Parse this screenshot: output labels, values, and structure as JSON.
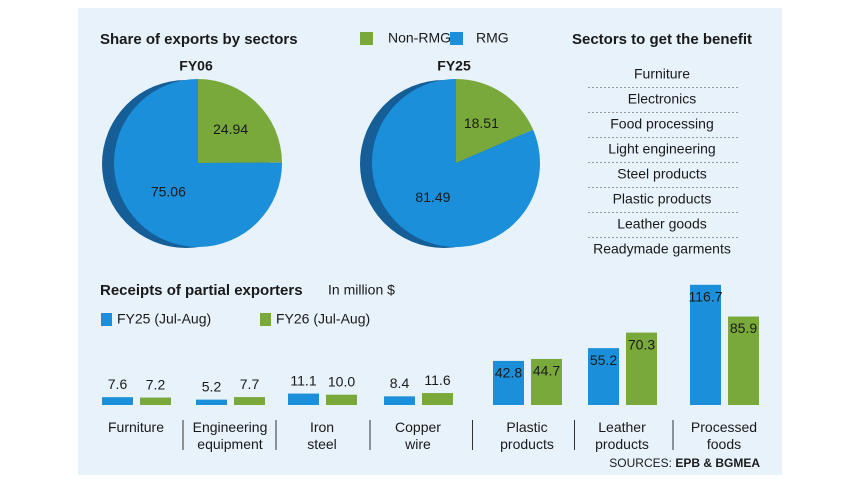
{
  "chart_data": [
    {
      "type": "pie",
      "title": "Share of exports by sectors",
      "subtitle": "FY06",
      "categories": [
        "Non-RMG",
        "RMG"
      ],
      "values": [
        24.94,
        75.06
      ],
      "colors": [
        "#79a93a",
        "#1b8fda"
      ]
    },
    {
      "type": "pie",
      "subtitle": "FY25",
      "categories": [
        "Non-RMG",
        "RMG"
      ],
      "values": [
        18.51,
        81.49
      ],
      "colors": [
        "#79a93a",
        "#1b8fda"
      ]
    },
    {
      "type": "bar",
      "title": "Receipts of partial exporters",
      "subtitle": "In million $",
      "categories": [
        "Furniture",
        "Engineering equipment",
        "Iron steel",
        "Copper wire",
        "Plastic products",
        "Leather products",
        "Processed foods"
      ],
      "series": [
        {
          "name": "FY25 (Jul-Aug)",
          "color": "#1b8fda",
          "values": [
            7.6,
            5.2,
            11.1,
            8.4,
            42.8,
            55.2,
            116.7
          ],
          "value_labels": [
            "7.6",
            "5.2",
            "11.1",
            "8.4",
            "42.8",
            "55.2",
            "116.7"
          ]
        },
        {
          "name": "FY26 (Jul-Aug)",
          "color": "#79a93a",
          "values": [
            7.2,
            7.7,
            10.0,
            11.6,
            44.7,
            70.3,
            85.9
          ],
          "value_labels": [
            "7.2",
            "7.7",
            "10.0",
            "11.6",
            "44.7",
            "70.3",
            "85.9"
          ]
        }
      ]
    }
  ],
  "sectors": {
    "title": "Sectors to get the benefit",
    "items": [
      "Furniture",
      "Electronics",
      "Food processing",
      "Light engineering",
      "Steel products",
      "Plastic products",
      "Leather goods",
      "Readymade garments"
    ]
  },
  "sources": {
    "label": "SOURCES:",
    "text": "EPB & BGMEA"
  }
}
